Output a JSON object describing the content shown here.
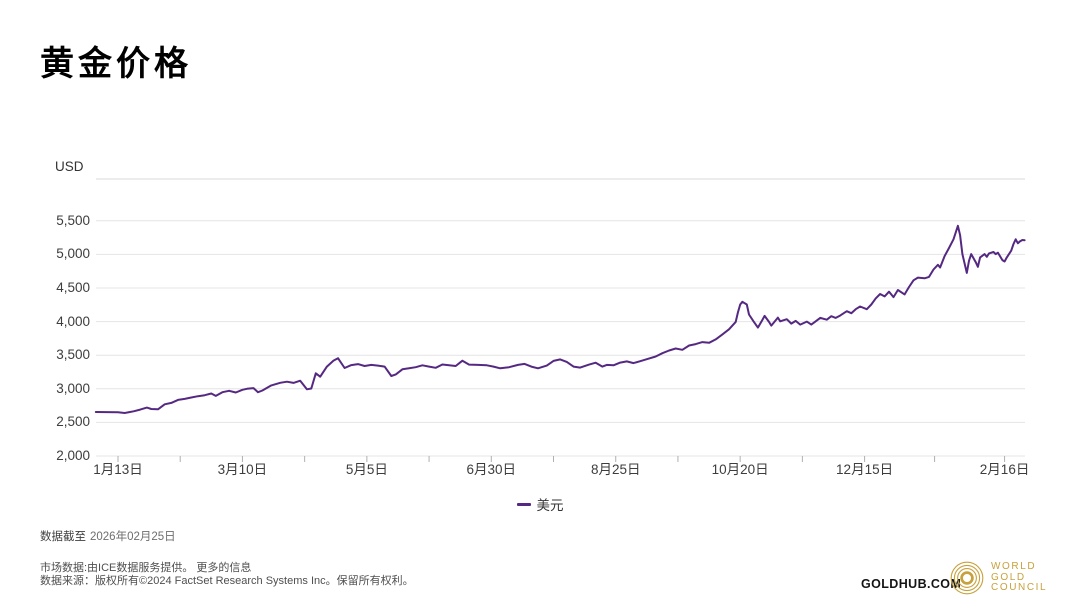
{
  "header": {
    "title": "黄金价格"
  },
  "chart": {
    "unit_label": "USD"
  },
  "chart_data": {
    "type": "line",
    "title": "黄金价格",
    "ylabel": "USD",
    "ylim": [
      2000,
      5500
    ],
    "grid": true,
    "legend_position": "bottom",
    "y_ticks": [
      {
        "value": 5500,
        "label": "5,500"
      },
      {
        "value": 5000,
        "label": "5,000"
      },
      {
        "value": 4500,
        "label": "4,500"
      },
      {
        "value": 4000,
        "label": "4,000"
      },
      {
        "value": 3500,
        "label": "3,500"
      },
      {
        "value": 3000,
        "label": "3,000"
      },
      {
        "value": 2500,
        "label": "2,500"
      },
      {
        "value": 2000,
        "label": "2,000"
      }
    ],
    "x_day0_date": "2025-01-13",
    "x_ticks": [
      {
        "label": "1月13日",
        "day": 0
      },
      {
        "label": "3月10日",
        "day": 56
      },
      {
        "label": "5月5日",
        "day": 112
      },
      {
        "label": "6月30日",
        "day": 168
      },
      {
        "label": "8月25日",
        "day": 224
      },
      {
        "label": "10月20日",
        "day": 280
      },
      {
        "label": "12月15日",
        "day": 336
      },
      {
        "label": "2月16日",
        "day": 399
      }
    ],
    "series": [
      {
        "name": "美元",
        "color": "#552982",
        "points": [
          [
            -10,
            2655
          ],
          [
            0,
            2650
          ],
          [
            3,
            2640
          ],
          [
            7,
            2665
          ],
          [
            10,
            2690
          ],
          [
            13,
            2720
          ],
          [
            15,
            2700
          ],
          [
            18,
            2695
          ],
          [
            21,
            2770
          ],
          [
            24,
            2790
          ],
          [
            27,
            2835
          ],
          [
            30,
            2850
          ],
          [
            33,
            2870
          ],
          [
            36,
            2890
          ],
          [
            39,
            2905
          ],
          [
            42,
            2930
          ],
          [
            44,
            2895
          ],
          [
            47,
            2950
          ],
          [
            50,
            2970
          ],
          [
            53,
            2945
          ],
          [
            56,
            2985
          ],
          [
            58,
            3000
          ],
          [
            61,
            3010
          ],
          [
            63,
            2950
          ],
          [
            65,
            2975
          ],
          [
            69,
            3050
          ],
          [
            73,
            3090
          ],
          [
            76,
            3105
          ],
          [
            79,
            3088
          ],
          [
            82,
            3120
          ],
          [
            85,
            2992
          ],
          [
            87,
            3005
          ],
          [
            89,
            3230
          ],
          [
            91,
            3180
          ],
          [
            94,
            3330
          ],
          [
            97,
            3420
          ],
          [
            99,
            3455
          ],
          [
            102,
            3310
          ],
          [
            105,
            3352
          ],
          [
            108,
            3368
          ],
          [
            111,
            3340
          ],
          [
            114,
            3355
          ],
          [
            117,
            3345
          ],
          [
            120,
            3330
          ],
          [
            123,
            3190
          ],
          [
            125,
            3215
          ],
          [
            128,
            3290
          ],
          [
            131,
            3305
          ],
          [
            134,
            3322
          ],
          [
            137,
            3350
          ],
          [
            140,
            3330
          ],
          [
            143,
            3312
          ],
          [
            146,
            3362
          ],
          [
            149,
            3350
          ],
          [
            152,
            3340
          ],
          [
            155,
            3418
          ],
          [
            158,
            3360
          ],
          [
            162,
            3355
          ],
          [
            166,
            3350
          ],
          [
            169,
            3330
          ],
          [
            172,
            3305
          ],
          [
            176,
            3322
          ],
          [
            180,
            3355
          ],
          [
            183,
            3370
          ],
          [
            186,
            3330
          ],
          [
            189,
            3305
          ],
          [
            193,
            3345
          ],
          [
            196,
            3415
          ],
          [
            199,
            3438
          ],
          [
            202,
            3400
          ],
          [
            205,
            3330
          ],
          [
            208,
            3315
          ],
          [
            212,
            3360
          ],
          [
            215,
            3388
          ],
          [
            218,
            3330
          ],
          [
            220,
            3355
          ],
          [
            223,
            3350
          ],
          [
            226,
            3390
          ],
          [
            229,
            3408
          ],
          [
            232,
            3382
          ],
          [
            235,
            3410
          ],
          [
            238,
            3440
          ],
          [
            242,
            3480
          ],
          [
            245,
            3530
          ],
          [
            248,
            3570
          ],
          [
            251,
            3600
          ],
          [
            254,
            3580
          ],
          [
            257,
            3645
          ],
          [
            260,
            3665
          ],
          [
            263,
            3695
          ],
          [
            266,
            3685
          ],
          [
            269,
            3735
          ],
          [
            272,
            3810
          ],
          [
            275,
            3885
          ],
          [
            278,
            3995
          ],
          [
            279,
            4135
          ],
          [
            280,
            4255
          ],
          [
            281,
            4295
          ],
          [
            283,
            4255
          ],
          [
            284,
            4105
          ],
          [
            286,
            4005
          ],
          [
            288,
            3910
          ],
          [
            290,
            4025
          ],
          [
            291,
            4085
          ],
          [
            293,
            3995
          ],
          [
            294,
            3940
          ],
          [
            297,
            4060
          ],
          [
            298,
            4005
          ],
          [
            301,
            4035
          ],
          [
            303,
            3970
          ],
          [
            305,
            4010
          ],
          [
            307,
            3955
          ],
          [
            310,
            4000
          ],
          [
            312,
            3955
          ],
          [
            314,
            4005
          ],
          [
            316,
            4055
          ],
          [
            319,
            4028
          ],
          [
            321,
            4080
          ],
          [
            323,
            4055
          ],
          [
            325,
            4090
          ],
          [
            328,
            4155
          ],
          [
            330,
            4125
          ],
          [
            332,
            4185
          ],
          [
            334,
            4225
          ],
          [
            337,
            4185
          ],
          [
            339,
            4255
          ],
          [
            341,
            4345
          ],
          [
            343,
            4410
          ],
          [
            345,
            4375
          ],
          [
            347,
            4445
          ],
          [
            349,
            4365
          ],
          [
            351,
            4470
          ],
          [
            354,
            4405
          ],
          [
            356,
            4515
          ],
          [
            358,
            4615
          ],
          [
            360,
            4655
          ],
          [
            363,
            4645
          ],
          [
            365,
            4665
          ],
          [
            367,
            4775
          ],
          [
            369,
            4845
          ],
          [
            370,
            4805
          ],
          [
            372,
            4975
          ],
          [
            374,
            5095
          ],
          [
            376,
            5225
          ],
          [
            378,
            5425
          ],
          [
            379,
            5285
          ],
          [
            380,
            5005
          ],
          [
            382,
            4725
          ],
          [
            383,
            4905
          ],
          [
            384,
            5005
          ],
          [
            386,
            4885
          ],
          [
            387,
            4815
          ],
          [
            388,
            4955
          ],
          [
            390,
            5005
          ],
          [
            391,
            4965
          ],
          [
            392,
            5015
          ],
          [
            394,
            5035
          ],
          [
            395,
            5005
          ],
          [
            396,
            5025
          ],
          [
            398,
            4915
          ],
          [
            399,
            4895
          ],
          [
            400,
            4955
          ],
          [
            402,
            5055
          ],
          [
            403,
            5155
          ],
          [
            404,
            5225
          ],
          [
            405,
            5165
          ],
          [
            406,
            5195
          ],
          [
            407,
            5215
          ],
          [
            408,
            5210
          ]
        ]
      }
    ]
  },
  "footer": {
    "as_of_prefix": "数据截至",
    "as_of_date": "2026年02月25日",
    "source_line1": "市场数据:由ICE数据服务提供。",
    "more_info": "更多的信息",
    "source_line2": "数据来源：版权所有©2024 FactSet Research Systems Inc。保留所有权利。",
    "goldhub": "GOLDHUB.COM",
    "wgc": {
      "line1": "WORLD",
      "line2": "GOLD",
      "line3": "COUNCIL",
      "color": "#C7A13C"
    }
  },
  "colors": {
    "line": "#552982",
    "grid": "#e4e4e4",
    "plot_top_border": "#d9d9d9",
    "tick": "#b0b0b0",
    "gold": "#C7A13C"
  }
}
